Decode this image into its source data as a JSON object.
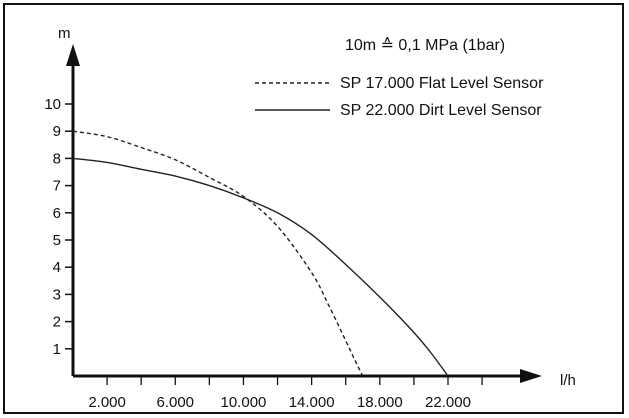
{
  "chart_data": {
    "type": "line",
    "ylabel": "m",
    "xlabel": "l/h",
    "annotation": "10m ≙ 0,1 MPa (1bar)",
    "xlim": [
      0,
      24000
    ],
    "ylim": [
      0,
      11
    ],
    "x_ticks": [
      2000,
      6000,
      10000,
      14000,
      18000,
      22000
    ],
    "x_tick_labels": [
      "2.000",
      "6.000",
      "10.000",
      "14.000",
      "18.000",
      "22.000"
    ],
    "y_ticks": [
      1,
      2,
      3,
      4,
      5,
      6,
      7,
      8,
      9,
      10
    ],
    "y_tick_labels": [
      "1",
      "2",
      "3",
      "4",
      "5",
      "6",
      "7",
      "8",
      "9",
      "10"
    ],
    "grid": false,
    "legend_position": "top-right",
    "series": [
      {
        "name": "SP 17.000 Flat Level Sensor",
        "line_style": "dashed",
        "x": [
          0,
          2000,
          4000,
          6000,
          8000,
          10000,
          12000,
          14000,
          15000,
          16000,
          16600,
          17000
        ],
        "y": [
          9.0,
          8.8,
          8.4,
          7.95,
          7.3,
          6.6,
          5.5,
          3.8,
          2.6,
          1.3,
          0.5,
          0
        ]
      },
      {
        "name": "SP 22.000 Dirt Level Sensor",
        "line_style": "solid",
        "x": [
          0,
          2000,
          4000,
          6000,
          8000,
          10000,
          12000,
          14000,
          16000,
          18000,
          20000,
          21000,
          22000
        ],
        "y": [
          8.0,
          7.85,
          7.6,
          7.35,
          7.0,
          6.55,
          6.0,
          5.2,
          4.1,
          2.9,
          1.6,
          0.85,
          0
        ]
      }
    ]
  }
}
